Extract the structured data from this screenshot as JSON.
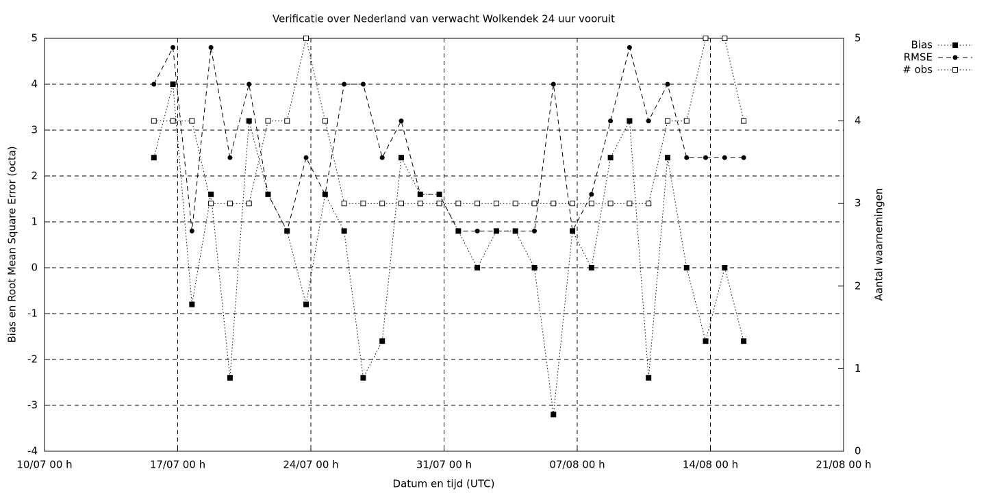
{
  "chart_data": {
    "type": "line",
    "title": "Verificatie over Nederland van verwacht Wolkendek 24 uur vooruit",
    "xlabel": "Datum en tijd (UTC)",
    "ylabel": "Bias en Root Mean Square Error (octa)",
    "y2label": "Aantal waarnemingen",
    "x": [
      5.75,
      6.75,
      7.75,
      8.75,
      9.75,
      10.75,
      11.75,
      12.75,
      13.75,
      14.75,
      15.75,
      16.75,
      17.75,
      18.75,
      19.75,
      20.75,
      21.75,
      22.75,
      23.75,
      24.75,
      25.75,
      26.75,
      27.75,
      28.75,
      29.75,
      30.75,
      31.75,
      32.75,
      33.75,
      34.75,
      35.75,
      36.75
    ],
    "series": [
      {
        "name": "Bias",
        "color": "#000000",
        "marker": "square",
        "dash": "dotted",
        "values": [
          2.4,
          4.0,
          -0.8,
          1.6,
          -2.4,
          3.2,
          1.6,
          0.8,
          -0.8,
          1.6,
          0.8,
          -2.4,
          -1.6,
          2.4,
          1.6,
          1.6,
          0.8,
          0,
          0.8,
          0.8,
          0,
          -3.2,
          0.8,
          0,
          2.4,
          3.2,
          -2.4,
          2.4,
          0,
          -1.6,
          0,
          -1.6
        ]
      },
      {
        "name": "RMSE",
        "color": "#000000",
        "marker": "circle",
        "dash": "dashed",
        "values": [
          4.0,
          4.8,
          0.8,
          4.8,
          2.4,
          4.0,
          1.6,
          0.8,
          2.4,
          1.6,
          4.0,
          4.0,
          2.4,
          3.2,
          1.6,
          1.6,
          0.8,
          0.8,
          0.8,
          0.8,
          0.8,
          4.0,
          0.8,
          1.6,
          3.2,
          4.8,
          3.2,
          4.0,
          2.4,
          2.4,
          2.4,
          2.4
        ]
      },
      {
        "name": "# obs",
        "color": "#000000",
        "marker": "open-square",
        "dash": "dotted",
        "axis": "y2",
        "values": [
          4,
          4,
          4,
          3,
          3,
          3,
          4,
          4,
          5,
          4,
          3,
          3,
          3,
          3,
          3,
          3,
          3,
          3,
          3,
          3,
          3,
          3,
          3,
          3,
          3,
          3,
          3,
          4,
          4,
          5,
          5,
          4
        ]
      }
    ],
    "xlim": [
      0,
      42
    ],
    "xticks": [
      {
        "value": 0,
        "label": "10/07 00 h"
      },
      {
        "value": 7,
        "label": "17/07 00 h"
      },
      {
        "value": 14,
        "label": "24/07 00 h"
      },
      {
        "value": 21,
        "label": "31/07 00 h"
      },
      {
        "value": 28,
        "label": "07/08 00 h"
      },
      {
        "value": 35,
        "label": "14/08 00 h"
      },
      {
        "value": 42,
        "label": "21/08 00 h"
      }
    ],
    "ylim": [
      -4,
      5
    ],
    "yticks": [
      -4,
      -3,
      -2,
      -1,
      0,
      1,
      2,
      3,
      4,
      5
    ],
    "y2lim": [
      0,
      5
    ],
    "y2ticks": [
      0,
      1,
      2,
      3,
      4,
      5
    ],
    "grid": true,
    "legend": "outside-top-right"
  }
}
